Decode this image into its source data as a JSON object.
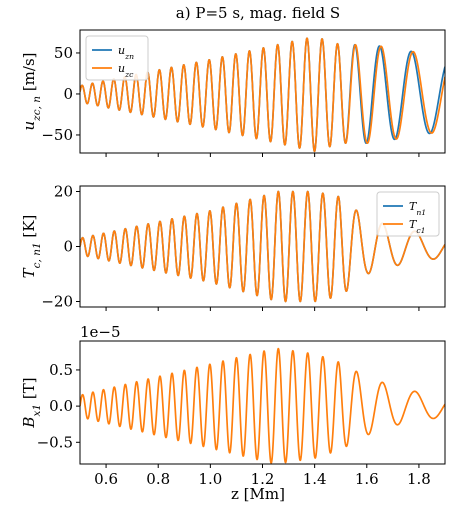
{
  "figure": {
    "title": "a) P=5 s, mag. field S",
    "xlabel": "z [Mm]"
  },
  "colors": {
    "blue": "#1f77b4",
    "orange": "#ff7f0e"
  },
  "chart_data": [
    {
      "type": "line",
      "ylabel": "u_{zc,n} [m/s]",
      "ylabel_main": "u",
      "ylabel_sub": "zc, n",
      "ylabel_unit": " [m/s]",
      "xlim": [
        0.5,
        1.9
      ],
      "ylim": [
        -72,
        78
      ],
      "xticks": [
        0.6,
        0.8,
        1.0,
        1.2,
        1.4,
        1.6,
        1.8
      ],
      "yticks": [
        50,
        0,
        -50
      ],
      "ytick_labels": [
        "50",
        "0",
        "−50"
      ],
      "multiplier_text": "",
      "legend": "top-left",
      "grid": false,
      "wave_model": {
        "amp_points": [
          [
            0.5,
            10
          ],
          [
            1.0,
            42
          ],
          [
            1.4,
            70
          ],
          [
            1.5,
            60
          ],
          [
            1.62,
            60
          ],
          [
            1.75,
            53
          ],
          [
            1.9,
            45
          ]
        ],
        "wavelength_points": [
          [
            0.5,
            0.039
          ],
          [
            1.0,
            0.05
          ],
          [
            1.5,
            0.06
          ],
          [
            1.6,
            0.1
          ],
          [
            1.9,
            0.16
          ]
        ],
        "phase": 0.3
      },
      "series": [
        {
          "name": "u_{zn}",
          "label_main": "u",
          "label_sub": "zn",
          "color": "#1f77b4",
          "phase_shift": 0.35
        },
        {
          "name": "u_{zc}",
          "label_main": "u",
          "label_sub": "zc",
          "color": "#ff7f0e",
          "phase_shift": 0.0
        }
      ]
    },
    {
      "type": "line",
      "ylabel": "T_{c,n1} [K]",
      "ylabel_main": "T",
      "ylabel_sub": "c, n1",
      "ylabel_unit": " [K]",
      "xlim": [
        0.5,
        1.9
      ],
      "ylim": [
        -22,
        22
      ],
      "xticks": [
        0.6,
        0.8,
        1.0,
        1.2,
        1.4,
        1.6,
        1.8
      ],
      "yticks": [
        20,
        0,
        -20
      ],
      "ytick_labels": [
        "20",
        "0",
        "−20"
      ],
      "multiplier_text": "",
      "legend": "top-right",
      "grid": false,
      "wave_model": {
        "amp_points": [
          [
            0.5,
            3
          ],
          [
            1.0,
            13
          ],
          [
            1.26,
            20
          ],
          [
            1.4,
            20
          ],
          [
            1.5,
            18
          ],
          [
            1.6,
            10
          ],
          [
            1.75,
            6
          ],
          [
            1.9,
            4
          ]
        ],
        "wavelength_points": [
          [
            0.5,
            0.039
          ],
          [
            1.0,
            0.05
          ],
          [
            1.5,
            0.06
          ],
          [
            1.6,
            0.1
          ],
          [
            1.9,
            0.16
          ]
        ],
        "phase": 0.0
      },
      "series": [
        {
          "name": "T_{n1}",
          "label_main": "T",
          "label_sub": "n1",
          "color": "#1f77b4",
          "phase_shift": 0.0
        },
        {
          "name": "T_{c1}",
          "label_main": "T",
          "label_sub": "c1",
          "color": "#ff7f0e",
          "phase_shift": 0.0
        }
      ]
    },
    {
      "type": "line",
      "ylabel": "B_{x1} [T]",
      "ylabel_main": "B",
      "ylabel_sub": "x1",
      "ylabel_unit": " [T]",
      "xlim": [
        0.5,
        1.9
      ],
      "ylim": [
        -8e-06,
        9e-06
      ],
      "xticks": [
        0.6,
        0.8,
        1.0,
        1.2,
        1.4,
        1.6,
        1.8
      ],
      "yticks": [
        5e-06,
        0.0,
        -5e-06
      ],
      "ytick_labels": [
        "0.5",
        "0.0",
        "−0.5"
      ],
      "multiplier_text": "1e−5",
      "legend": "none",
      "grid": false,
      "wave_model": {
        "amp_points": [
          [
            0.5,
            1.5e-06
          ],
          [
            1.0,
            5.8e-06
          ],
          [
            1.25,
            8e-06
          ],
          [
            1.4,
            7.2e-06
          ],
          [
            1.5,
            6e-06
          ],
          [
            1.6,
            4e-06
          ],
          [
            1.75,
            2.2e-06
          ],
          [
            1.9,
            1.5e-06
          ]
        ],
        "wavelength_points": [
          [
            0.5,
            0.039
          ],
          [
            1.0,
            0.05
          ],
          [
            1.5,
            0.06
          ],
          [
            1.6,
            0.1
          ],
          [
            1.9,
            0.16
          ]
        ],
        "phase": 0.0
      },
      "series": [
        {
          "name": "B_{x1}",
          "label_main": "B",
          "label_sub": "x1",
          "color": "#ff7f0e",
          "phase_shift": 0.0
        }
      ]
    }
  ]
}
